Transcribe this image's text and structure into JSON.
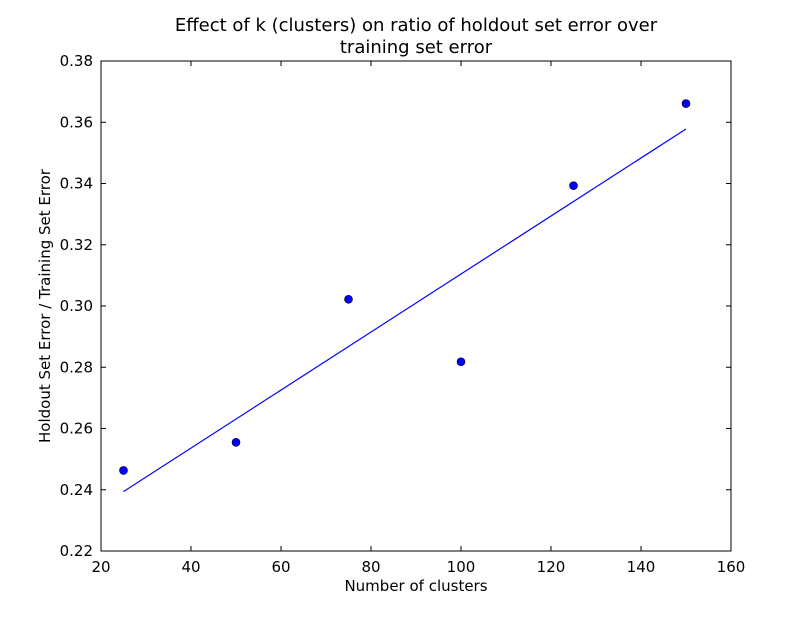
{
  "chart_data": {
    "type": "scatter",
    "title_lines": [
      "Effect of k (clusters) on ratio of holdout set error over",
      "training set error"
    ],
    "xlabel": "Number of clusters",
    "ylabel": "Holdout Set Error / Training Set Error",
    "xlim": [
      20,
      160
    ],
    "ylim": [
      0.22,
      0.38
    ],
    "x_ticks": [
      "20",
      "40",
      "60",
      "80",
      "100",
      "120",
      "140",
      "160"
    ],
    "y_ticks": [
      "0.22",
      "0.24",
      "0.26",
      "0.28",
      "0.30",
      "0.32",
      "0.34",
      "0.36",
      "0.38"
    ],
    "grid": false,
    "series": [
      {
        "type": "scatter",
        "x": [
          25,
          50,
          75,
          100,
          125,
          150
        ],
        "y": [
          0.2463,
          0.2555,
          0.3022,
          0.2818,
          0.3393,
          0.3661
        ],
        "color": "#0000ff",
        "marker": "circle"
      },
      {
        "type": "line",
        "x": [
          25,
          150
        ],
        "y": [
          0.2394,
          0.3578
        ],
        "color": "#0000ff"
      }
    ]
  }
}
